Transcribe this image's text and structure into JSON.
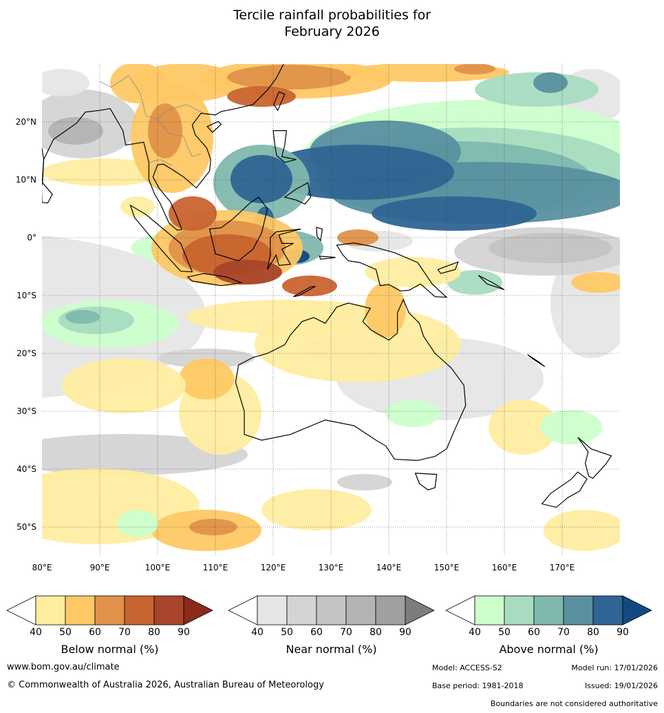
{
  "title": {
    "line1": "Tercile rainfall probabilities for",
    "line2": "February 2026"
  },
  "map": {
    "lon_ticks": [
      "80°E",
      "90°E",
      "100°E",
      "110°E",
      "120°E",
      "130°E",
      "140°E",
      "150°E",
      "160°E",
      "170°E"
    ],
    "lat_ticks": [
      "20°N",
      "10°N",
      "0°",
      "10°S",
      "20°S",
      "30°S",
      "40°S",
      "50°S"
    ],
    "colors": {
      "below": [
        "#ffeda0",
        "#fec865",
        "#e0924a",
        "#c8642f",
        "#a8452a",
        "#8c2a1c"
      ],
      "near": [
        "#e6e6e6",
        "#d4d4d4",
        "#c4c4c4",
        "#b4b4b4",
        "#a0a0a0",
        "#7d7d7d"
      ],
      "above": [
        "#ccffcc",
        "#a8dcc0",
        "#80b8ae",
        "#5a90a0",
        "#2f6494",
        "#124a80"
      ],
      "land_outline": "#000000"
    }
  },
  "legends": [
    {
      "label": "Below normal (%)",
      "ticks": [
        "40",
        "50",
        "60",
        "70",
        "80",
        "90"
      ],
      "colors": [
        "#ffeda0",
        "#fec865",
        "#e0924a",
        "#c8642f",
        "#a8452a",
        "#8c2a1c"
      ]
    },
    {
      "label": "Near normal (%)",
      "ticks": [
        "40",
        "50",
        "60",
        "70",
        "80",
        "90"
      ],
      "colors": [
        "#e6e6e6",
        "#d4d4d4",
        "#c4c4c4",
        "#b4b4b4",
        "#a0a0a0",
        "#7d7d7d"
      ]
    },
    {
      "label": "Above normal (%)",
      "ticks": [
        "40",
        "50",
        "60",
        "70",
        "80",
        "90"
      ],
      "colors": [
        "#ccffcc",
        "#a8dcc0",
        "#80b8ae",
        "#5a90a0",
        "#2f6494",
        "#124a80"
      ]
    }
  ],
  "footer": {
    "website": "www.bom.gov.au/climate",
    "copyright": "© Commonwealth of Australia 2026, Australian Bureau of Meteorology",
    "model": "Model: ACCESS-S2",
    "model_run": "Model run: 17/01/2026",
    "base_period": "Base period: 1981-2018",
    "issued": "Issued: 19/01/2026",
    "disclaimer": "Boundaries are not considered authoritative"
  }
}
